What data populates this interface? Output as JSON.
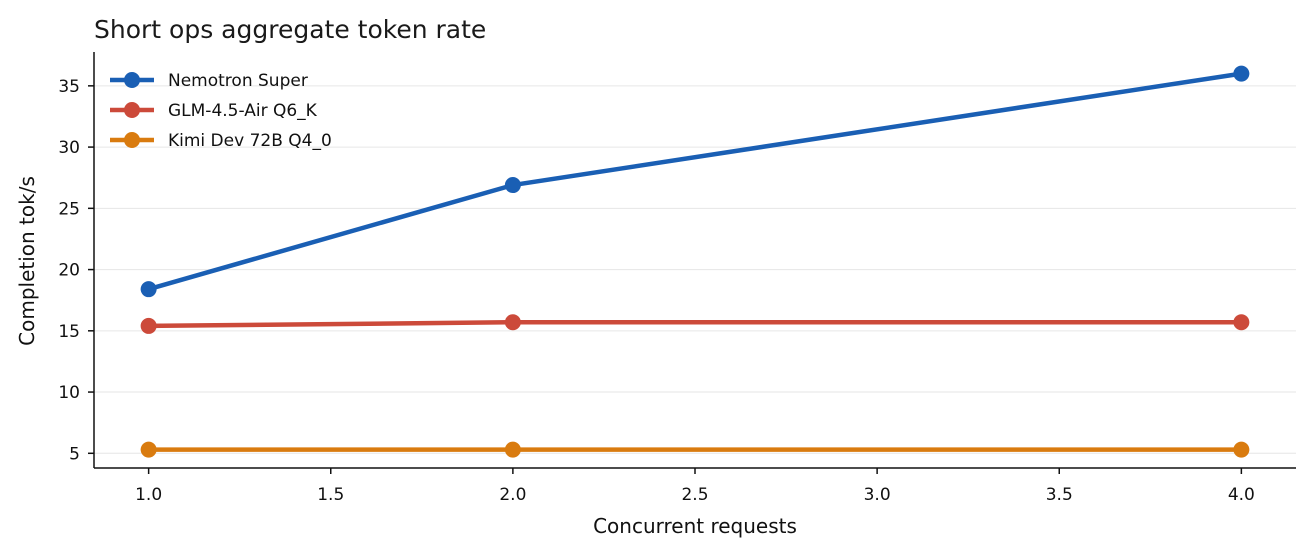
{
  "chart_data": {
    "type": "line",
    "title": "Short ops aggregate token rate",
    "xlabel": "Concurrent requests",
    "ylabel": "Completion tok/s",
    "x": [
      1.0,
      2.0,
      4.0
    ],
    "xlim": [
      0.85,
      4.15
    ],
    "ylim": [
      3.8,
      37.6
    ],
    "xticks": [
      1.0,
      1.5,
      2.0,
      2.5,
      3.0,
      3.5,
      4.0
    ],
    "xtick_labels": [
      "1.0",
      "1.5",
      "2.0",
      "2.5",
      "3.0",
      "3.5",
      "4.0"
    ],
    "yticks": [
      5,
      10,
      15,
      20,
      25,
      30,
      35
    ],
    "ytick_labels": [
      "5",
      "10",
      "15",
      "20",
      "25",
      "30",
      "35"
    ],
    "grid": "horizontal",
    "legend_position": "top-left",
    "series": [
      {
        "name": "Nemotron Super",
        "color": "#1a5fb4",
        "values": [
          18.4,
          26.9,
          36.0
        ]
      },
      {
        "name": "GLM-4.5-Air Q6_K",
        "color": "#cc4a3a",
        "values": [
          15.4,
          15.7,
          15.7
        ]
      },
      {
        "name": "Kimi Dev 72B Q4_0",
        "color": "#d97b0f",
        "values": [
          5.3,
          5.3,
          5.3
        ]
      }
    ]
  }
}
